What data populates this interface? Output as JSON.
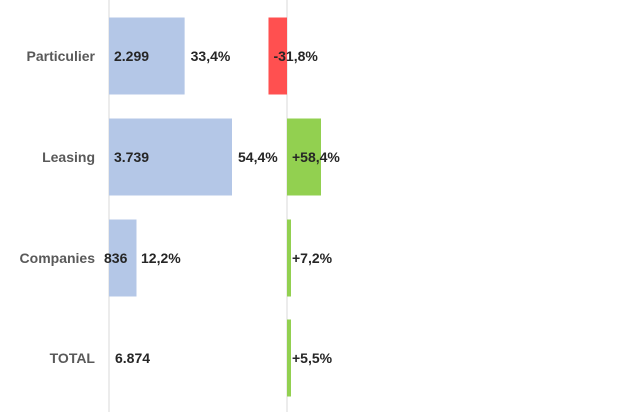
{
  "chart_data": {
    "type": "bar",
    "categories": [
      "Particulier",
      "Leasing",
      "Companies",
      "TOTAL"
    ],
    "series": [
      {
        "values": [
          2299,
          3739,
          836,
          6874
        ],
        "value_labels": [
          "2.299",
          "3.739",
          "836",
          "6.874"
        ],
        "share_labels": [
          "33,4%",
          "54,4%",
          "12,2%",
          ""
        ]
      },
      {
        "values": [
          -31.8,
          58.4,
          7.2,
          5.5
        ],
        "value_labels": [
          "-31,8%",
          "+58,4%",
          "+7,2%",
          "+5,5%"
        ]
      }
    ],
    "colors": {
      "volume_bar": "#b4c7e7",
      "positive_change": "#92d050",
      "negative_change": "#ff5050",
      "axis_line": "#d9d9d9"
    },
    "grid": false,
    "legend": "none"
  }
}
